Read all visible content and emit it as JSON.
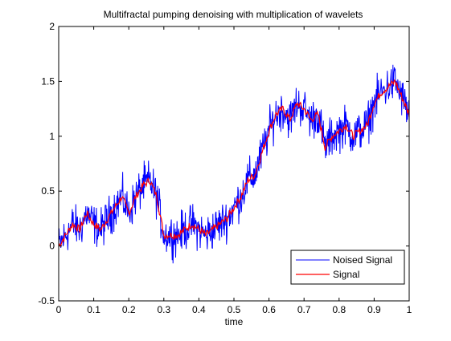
{
  "chart_data": {
    "type": "line",
    "title": "Multifractal pumping denoising with multiplication of wavelets",
    "xlabel": "time",
    "ylabel": "",
    "xlim": [
      0,
      1
    ],
    "ylim": [
      -0.5,
      2
    ],
    "grid": false,
    "legend_position": "bottom-right",
    "x_ticks": [
      0,
      0.1,
      0.2,
      0.3,
      0.4,
      0.5,
      0.6,
      0.7,
      0.8,
      0.9,
      1
    ],
    "x_tick_labels": [
      "0",
      "0.1",
      "0.2",
      "0.3",
      "0.4",
      "0.5",
      "0.6",
      "0.7",
      "0.8",
      "0.9",
      "1"
    ],
    "y_ticks": [
      -0.5,
      0,
      0.5,
      1,
      1.5,
      2
    ],
    "y_tick_labels": [
      "-0.5",
      "0",
      "0.5",
      "1",
      "1.5",
      "2"
    ],
    "series": [
      {
        "name": "Noised Signal",
        "color": "#0000ff",
        "noise_amplitude": 0.17,
        "sample_count": 800
      },
      {
        "name": "Signal",
        "color": "#ff0000",
        "x": [
          0,
          0.02,
          0.04,
          0.06,
          0.08,
          0.1,
          0.12,
          0.14,
          0.16,
          0.18,
          0.2,
          0.22,
          0.24,
          0.26,
          0.28,
          0.3,
          0.32,
          0.34,
          0.36,
          0.38,
          0.4,
          0.42,
          0.44,
          0.46,
          0.48,
          0.5,
          0.52,
          0.54,
          0.56,
          0.58,
          0.6,
          0.62,
          0.64,
          0.66,
          0.68,
          0.7,
          0.72,
          0.74,
          0.76,
          0.78,
          0.8,
          0.82,
          0.84,
          0.86,
          0.88,
          0.9,
          0.92,
          0.94,
          0.96,
          0.98,
          1
        ],
        "values": [
          0,
          0.1,
          0.2,
          0.15,
          0.3,
          0.2,
          0.15,
          0.25,
          0.35,
          0.45,
          0.3,
          0.45,
          0.55,
          0.6,
          0.45,
          0.1,
          0.1,
          0.1,
          0.15,
          0.2,
          0.15,
          0.1,
          0.15,
          0.2,
          0.25,
          0.35,
          0.45,
          0.6,
          0.65,
          0.85,
          1.05,
          1.2,
          1.25,
          1.15,
          1.3,
          1.25,
          1.15,
          1.2,
          0.9,
          1.0,
          1.05,
          1.1,
          1.0,
          1.05,
          1.1,
          1.3,
          1.4,
          1.45,
          1.5,
          1.35,
          1.2
        ]
      }
    ]
  }
}
